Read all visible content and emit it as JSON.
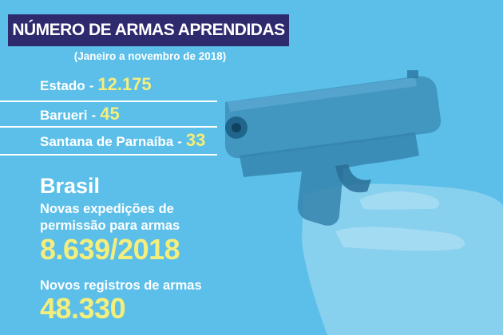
{
  "header": {
    "title": "NÚMERO DE ARMAS APRENDIDAS",
    "period": "(Janeiro a novembro de 2018)"
  },
  "stats": [
    {
      "label": "Estado",
      "value": "12.175"
    },
    {
      "label": "Barueri",
      "value": "45"
    },
    {
      "label": "Santana de Parnaíba",
      "value": "33"
    }
  ],
  "separator": "-",
  "brasil": {
    "title": "Brasil",
    "permits_label_line1": "Novas expedições de",
    "permits_label_line2": "permissão para armas",
    "permits_value": "8.639/2018",
    "registrations_label": "Novos registros de armas",
    "registrations_value": "48.330"
  },
  "colors": {
    "background": "#5bbfe9",
    "title_bar": "#2e2a6e",
    "highlight": "#f4ee7c"
  },
  "illustration": "handgun-photo"
}
